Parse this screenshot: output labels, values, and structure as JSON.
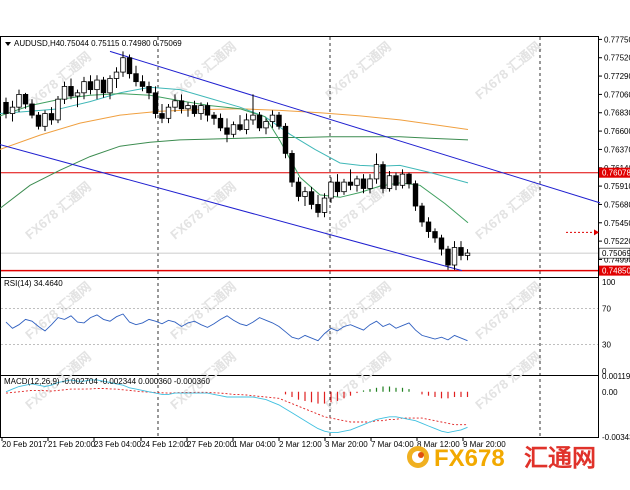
{
  "chart_data": {
    "type": "candlestick",
    "title": "AUDUSD,H4",
    "ohlc_header": [
      "0.75044",
      "0.75115",
      "0.74980",
      "0.75069"
    ],
    "y_ticks": [
      "0.77750",
      "0.77520",
      "0.77290",
      "0.77060",
      "0.76830",
      "0.76600",
      "0.76370",
      "0.76140",
      "0.75910",
      "0.75680",
      "0.75450",
      "0.75220",
      "0.74990"
    ],
    "ylim": [
      0.7477,
      0.7778
    ],
    "x_labels": [
      "20 Feb 2017",
      "21 Feb 20:00",
      "23 Feb 04:00",
      "24 Feb 12:00",
      "27 Feb 20:00",
      "1 Mar 04:00",
      "2 Mar 12:00",
      "3 Mar 20:00",
      "7 Mar 04:00",
      "8 Mar 12:00",
      "9 Mar 20:00"
    ],
    "price_tags": {
      "current": "0.75069",
      "resistance": "0.76078",
      "support": "0.74850"
    },
    "levels": {
      "current": 0.75069,
      "resistance": 0.76078,
      "support": 0.7485,
      "target": 0.7533
    },
    "candles": [
      [
        0.7696,
        0.7702,
        0.7676,
        0.7682
      ],
      [
        0.7682,
        0.7698,
        0.7672,
        0.769
      ],
      [
        0.769,
        0.7712,
        0.7684,
        0.7706
      ],
      [
        0.7706,
        0.7708,
        0.7688,
        0.7694
      ],
      [
        0.7694,
        0.77,
        0.7676,
        0.768
      ],
      [
        0.768,
        0.7684,
        0.7662,
        0.7666
      ],
      [
        0.7666,
        0.7686,
        0.766,
        0.7682
      ],
      [
        0.7682,
        0.769,
        0.7668,
        0.7674
      ],
      [
        0.7674,
        0.7704,
        0.767,
        0.77
      ],
      [
        0.77,
        0.7722,
        0.7694,
        0.7716
      ],
      [
        0.7716,
        0.7726,
        0.77,
        0.7704
      ],
      [
        0.7704,
        0.7712,
        0.769,
        0.7708
      ],
      [
        0.7708,
        0.7728,
        0.77,
        0.7722
      ],
      [
        0.7722,
        0.773,
        0.7706,
        0.7712
      ],
      [
        0.7712,
        0.773,
        0.77,
        0.7724
      ],
      [
        0.7724,
        0.7728,
        0.7702,
        0.7708
      ],
      [
        0.7708,
        0.773,
        0.77,
        0.7726
      ],
      [
        0.7726,
        0.774,
        0.7714,
        0.7734
      ],
      [
        0.7734,
        0.776,
        0.7728,
        0.7752
      ],
      [
        0.7752,
        0.7756,
        0.7726,
        0.7732
      ],
      [
        0.7732,
        0.7742,
        0.7716,
        0.7722
      ],
      [
        0.7722,
        0.773,
        0.771,
        0.7716
      ],
      [
        0.7716,
        0.7722,
        0.77,
        0.7708
      ],
      [
        0.7708,
        0.7716,
        0.7676,
        0.7682
      ],
      [
        0.7682,
        0.7694,
        0.767,
        0.7676
      ],
      [
        0.7676,
        0.7694,
        0.767,
        0.769
      ],
      [
        0.769,
        0.7706,
        0.7684,
        0.7698
      ],
      [
        0.7698,
        0.7706,
        0.7682,
        0.7688
      ],
      [
        0.7688,
        0.7696,
        0.7678,
        0.7692
      ],
      [
        0.7692,
        0.7698,
        0.7678,
        0.7682
      ],
      [
        0.7682,
        0.7696,
        0.7674,
        0.7692
      ],
      [
        0.7692,
        0.7696,
        0.7672,
        0.768
      ],
      [
        0.768,
        0.7684,
        0.7668,
        0.7676
      ],
      [
        0.7676,
        0.7682,
        0.766,
        0.7664
      ],
      [
        0.7664,
        0.7676,
        0.7646,
        0.7656
      ],
      [
        0.7656,
        0.7672,
        0.7652,
        0.7668
      ],
      [
        0.7668,
        0.768,
        0.766,
        0.7662
      ],
      [
        0.7662,
        0.7682,
        0.7656,
        0.7674
      ],
      [
        0.7674,
        0.7706,
        0.7668,
        0.768
      ],
      [
        0.768,
        0.7684,
        0.766,
        0.7664
      ],
      [
        0.7664,
        0.7676,
        0.7656,
        0.7672
      ],
      [
        0.7672,
        0.7686,
        0.7664,
        0.768
      ],
      [
        0.768,
        0.7684,
        0.7662,
        0.7666
      ],
      [
        0.7666,
        0.767,
        0.7626,
        0.7632
      ],
      [
        0.7632,
        0.7636,
        0.759,
        0.7596
      ],
      [
        0.7596,
        0.7602,
        0.7572,
        0.7578
      ],
      [
        0.7578,
        0.759,
        0.7566,
        0.7584
      ],
      [
        0.7584,
        0.759,
        0.7562,
        0.7568
      ],
      [
        0.7568,
        0.758,
        0.7552,
        0.7558
      ],
      [
        0.7558,
        0.7582,
        0.7552,
        0.7576
      ],
      [
        0.7576,
        0.7602,
        0.757,
        0.7596
      ],
      [
        0.7596,
        0.7606,
        0.7578,
        0.7584
      ],
      [
        0.7584,
        0.76,
        0.758,
        0.7596
      ],
      [
        0.7596,
        0.7612,
        0.7586,
        0.7592
      ],
      [
        0.7592,
        0.7604,
        0.7584,
        0.76
      ],
      [
        0.76,
        0.7606,
        0.7582,
        0.7588
      ],
      [
        0.7588,
        0.7606,
        0.7582,
        0.76
      ],
      [
        0.76,
        0.7632,
        0.7594,
        0.7618
      ],
      [
        0.7618,
        0.7622,
        0.7582,
        0.7588
      ],
      [
        0.7588,
        0.761,
        0.7584,
        0.7604
      ],
      [
        0.7604,
        0.7608,
        0.7586,
        0.7592
      ],
      [
        0.7592,
        0.7612,
        0.7588,
        0.7606
      ],
      [
        0.7606,
        0.7608,
        0.7588,
        0.7594
      ],
      [
        0.7594,
        0.7598,
        0.756,
        0.7566
      ],
      [
        0.7566,
        0.757,
        0.754,
        0.7546
      ],
      [
        0.7546,
        0.7552,
        0.7526,
        0.7534
      ],
      [
        0.7534,
        0.7538,
        0.752,
        0.7526
      ],
      [
        0.7526,
        0.753,
        0.7504,
        0.7512
      ],
      [
        0.7512,
        0.7516,
        0.7486,
        0.7492
      ],
      [
        0.7492,
        0.7522,
        0.7486,
        0.7514
      ],
      [
        0.7514,
        0.7522,
        0.7498,
        0.7504
      ],
      [
        0.7504,
        0.7512,
        0.7498,
        0.7507
      ]
    ],
    "ma_green_dark": [
      [
        0,
        0.7563
      ],
      [
        30,
        0.7592
      ],
      [
        60,
        0.7611
      ],
      [
        90,
        0.7628
      ],
      [
        120,
        0.7641
      ],
      [
        150,
        0.7646
      ],
      [
        180,
        0.7649
      ],
      [
        209,
        0.765
      ],
      [
        240,
        0.7651
      ],
      [
        270,
        0.7652
      ],
      [
        300,
        0.7652
      ],
      [
        330,
        0.7653
      ],
      [
        360,
        0.7653
      ],
      [
        400,
        0.7653
      ],
      [
        430,
        0.7651
      ],
      [
        468,
        0.7649
      ]
    ],
    "ma_orange": [
      [
        0,
        0.7637
      ],
      [
        40,
        0.7655
      ],
      [
        80,
        0.767
      ],
      [
        120,
        0.768
      ],
      [
        160,
        0.7685
      ],
      [
        200,
        0.7687
      ],
      [
        240,
        0.7688
      ],
      [
        280,
        0.7686
      ],
      [
        320,
        0.7683
      ],
      [
        360,
        0.7679
      ],
      [
        400,
        0.7674
      ],
      [
        440,
        0.7667
      ],
      [
        468,
        0.7662
      ]
    ],
    "ma_teal": [
      [
        0,
        0.7682
      ],
      [
        30,
        0.7685
      ],
      [
        60,
        0.7688
      ],
      [
        90,
        0.7697
      ],
      [
        120,
        0.7708
      ],
      [
        150,
        0.7715
      ],
      [
        180,
        0.7712
      ],
      [
        210,
        0.7701
      ],
      [
        240,
        0.769
      ],
      [
        265,
        0.7678
      ],
      [
        290,
        0.7656
      ],
      [
        315,
        0.7637
      ],
      [
        340,
        0.762
      ],
      [
        360,
        0.7617
      ],
      [
        380,
        0.7616
      ],
      [
        400,
        0.7617
      ],
      [
        430,
        0.7608
      ],
      [
        468,
        0.7595
      ]
    ],
    "ma_green": [
      [
        0,
        0.7679
      ],
      [
        30,
        0.7692
      ],
      [
        60,
        0.77
      ],
      [
        90,
        0.7705
      ],
      [
        120,
        0.7707
      ],
      [
        150,
        0.7705
      ],
      [
        180,
        0.7698
      ],
      [
        210,
        0.7692
      ],
      [
        240,
        0.7688
      ],
      [
        265,
        0.7678
      ],
      [
        280,
        0.7648
      ],
      [
        300,
        0.7602
      ],
      [
        320,
        0.758
      ],
      [
        340,
        0.7577
      ],
      [
        360,
        0.7583
      ],
      [
        380,
        0.7591
      ],
      [
        400,
        0.7595
      ],
      [
        420,
        0.7592
      ],
      [
        445,
        0.7569
      ],
      [
        468,
        0.7545
      ]
    ],
    "channel_upper": [
      [
        110,
        0.776
      ],
      [
        600,
        0.757
      ]
    ],
    "channel_lower": [
      [
        0,
        0.7643
      ],
      [
        462,
        0.7485
      ]
    ],
    "rsi": {
      "label": "RSI(14) 34.4640",
      "ticks": [
        "100",
        "70",
        "30",
        "0"
      ],
      "ylim": [
        0,
        100
      ],
      "values": [
        55,
        48,
        52,
        58,
        56,
        50,
        45,
        52,
        60,
        58,
        62,
        55,
        54,
        60,
        63,
        58,
        56,
        61,
        64,
        55,
        52,
        54,
        58,
        56,
        53,
        57,
        55,
        50,
        54,
        56,
        52,
        49,
        53,
        58,
        62,
        57,
        53,
        51,
        55,
        60,
        57,
        54,
        50,
        44,
        38,
        36,
        40,
        37,
        34,
        42,
        48,
        45,
        50,
        52,
        49,
        46,
        52,
        56,
        50,
        53,
        48,
        51,
        54,
        46,
        40,
        38,
        36,
        38,
        35,
        40,
        37,
        34
      ]
    },
    "macd": {
      "label": "MACD(12,26,9) -0.002704 -0.002344 0.000360 -0.000360",
      "ticks": [
        "0.001197",
        "0.00",
        "-0.003438"
      ],
      "ylim": [
        -0.003438,
        0.001197
      ],
      "histogram": [
        0,
        0,
        0,
        0,
        0,
        0,
        0,
        0,
        0,
        0,
        0,
        0,
        0,
        0,
        0,
        0,
        0,
        0,
        0,
        0,
        0,
        0,
        0,
        0,
        0,
        0,
        0,
        0,
        0,
        0,
        0,
        0,
        0,
        0,
        0,
        0,
        0,
        0,
        0,
        0,
        0,
        0,
        0,
        -0.0002,
        -0.0004,
        -0.0006,
        -0.0007,
        -0.0008,
        -0.0009,
        -0.0009,
        -0.0008,
        -0.0007,
        -0.0005,
        -0.0003,
        -0.0001,
        0.0001,
        0.0002,
        0.0003,
        0.0004,
        0.0004,
        0.0003,
        0.0003,
        0.0002,
        0,
        -0.0002,
        -0.0003,
        -0.0004,
        -0.0005,
        -0.0005,
        -0.0004,
        -0.0004,
        -0.0004
      ],
      "signal": [
        -0.0001,
        -5e-05,
        0,
        5e-05,
        0.0001,
        0.0001,
        8e-05,
        5e-05,
        0.0001,
        0.00015,
        0.0002,
        0.0002,
        0.0002,
        0.00022,
        0.00025,
        0.00025,
        0.00022,
        0.0002,
        0.00015,
        0.0001,
        5e-05,
        0,
        -3e-05,
        -5e-05,
        -8e-05,
        -0.0001,
        -8e-05,
        -5e-05,
        -5e-05,
        -5e-05,
        -4e-05,
        -5e-05,
        -8e-05,
        -0.0001,
        -0.00015,
        -0.0002,
        -0.00022,
        -0.00025,
        -0.0003,
        -0.00035,
        -0.0004,
        -0.00045,
        -0.0005,
        -0.0007,
        -0.0009,
        -0.0011,
        -0.0013,
        -0.0015,
        -0.0017,
        -0.0019,
        -0.002,
        -0.0021,
        -0.0022,
        -0.0023,
        -0.0023,
        -0.0023,
        -0.0023,
        -0.0022,
        -0.0022,
        -0.0021,
        -0.0021,
        -0.002,
        -0.002,
        -0.002,
        -0.002,
        -0.0021,
        -0.0022,
        -0.0023,
        -0.0024,
        -0.0025,
        -0.0025,
        -0.0025
      ],
      "main": [
        0,
        0.0002,
        0.0004,
        0.0005,
        0.0006,
        0.0005,
        0.0004,
        0.0005,
        0.0007,
        0.0008,
        0.0009,
        0.0008,
        0.0008,
        0.0009,
        0.0009,
        0.0008,
        0.0007,
        0.0006,
        0.0005,
        0.0003,
        0.0002,
        0.0001,
        0,
        -0.0001,
        -0.0002,
        -0.0002,
        -0.0001,
        -0.0001,
        -0.0001,
        -0.0001,
        -0.0001,
        -0.0001,
        -0.0002,
        -0.0003,
        -0.0004,
        -0.0004,
        -0.0004,
        -0.0004,
        -0.0004,
        -0.0005,
        -0.0006,
        -0.0008,
        -0.001,
        -0.0013,
        -0.0016,
        -0.0019,
        -0.0022,
        -0.0025,
        -0.0028,
        -0.003,
        -0.0031,
        -0.0031,
        -0.003,
        -0.0029,
        -0.0027,
        -0.0025,
        -0.0023,
        -0.0021,
        -0.002,
        -0.0019,
        -0.0019,
        -0.002,
        -0.0021,
        -0.0022,
        -0.0024,
        -0.0026,
        -0.0028,
        -0.003,
        -0.0031,
        -0.003,
        -0.0029,
        -0.0027
      ]
    }
  },
  "watermark": {
    "text": "FX678 汇通网"
  },
  "logo": {
    "prefix": "FX678",
    "name": "汇通网"
  },
  "colors": {
    "bull": "#000000",
    "bear": "#000000",
    "channel": "#2020d0",
    "resistance": "#e00000",
    "orange": "#f0a040",
    "teal": "#40b8b8",
    "green": "#40a060",
    "green_dark": "#3c8c50"
  }
}
